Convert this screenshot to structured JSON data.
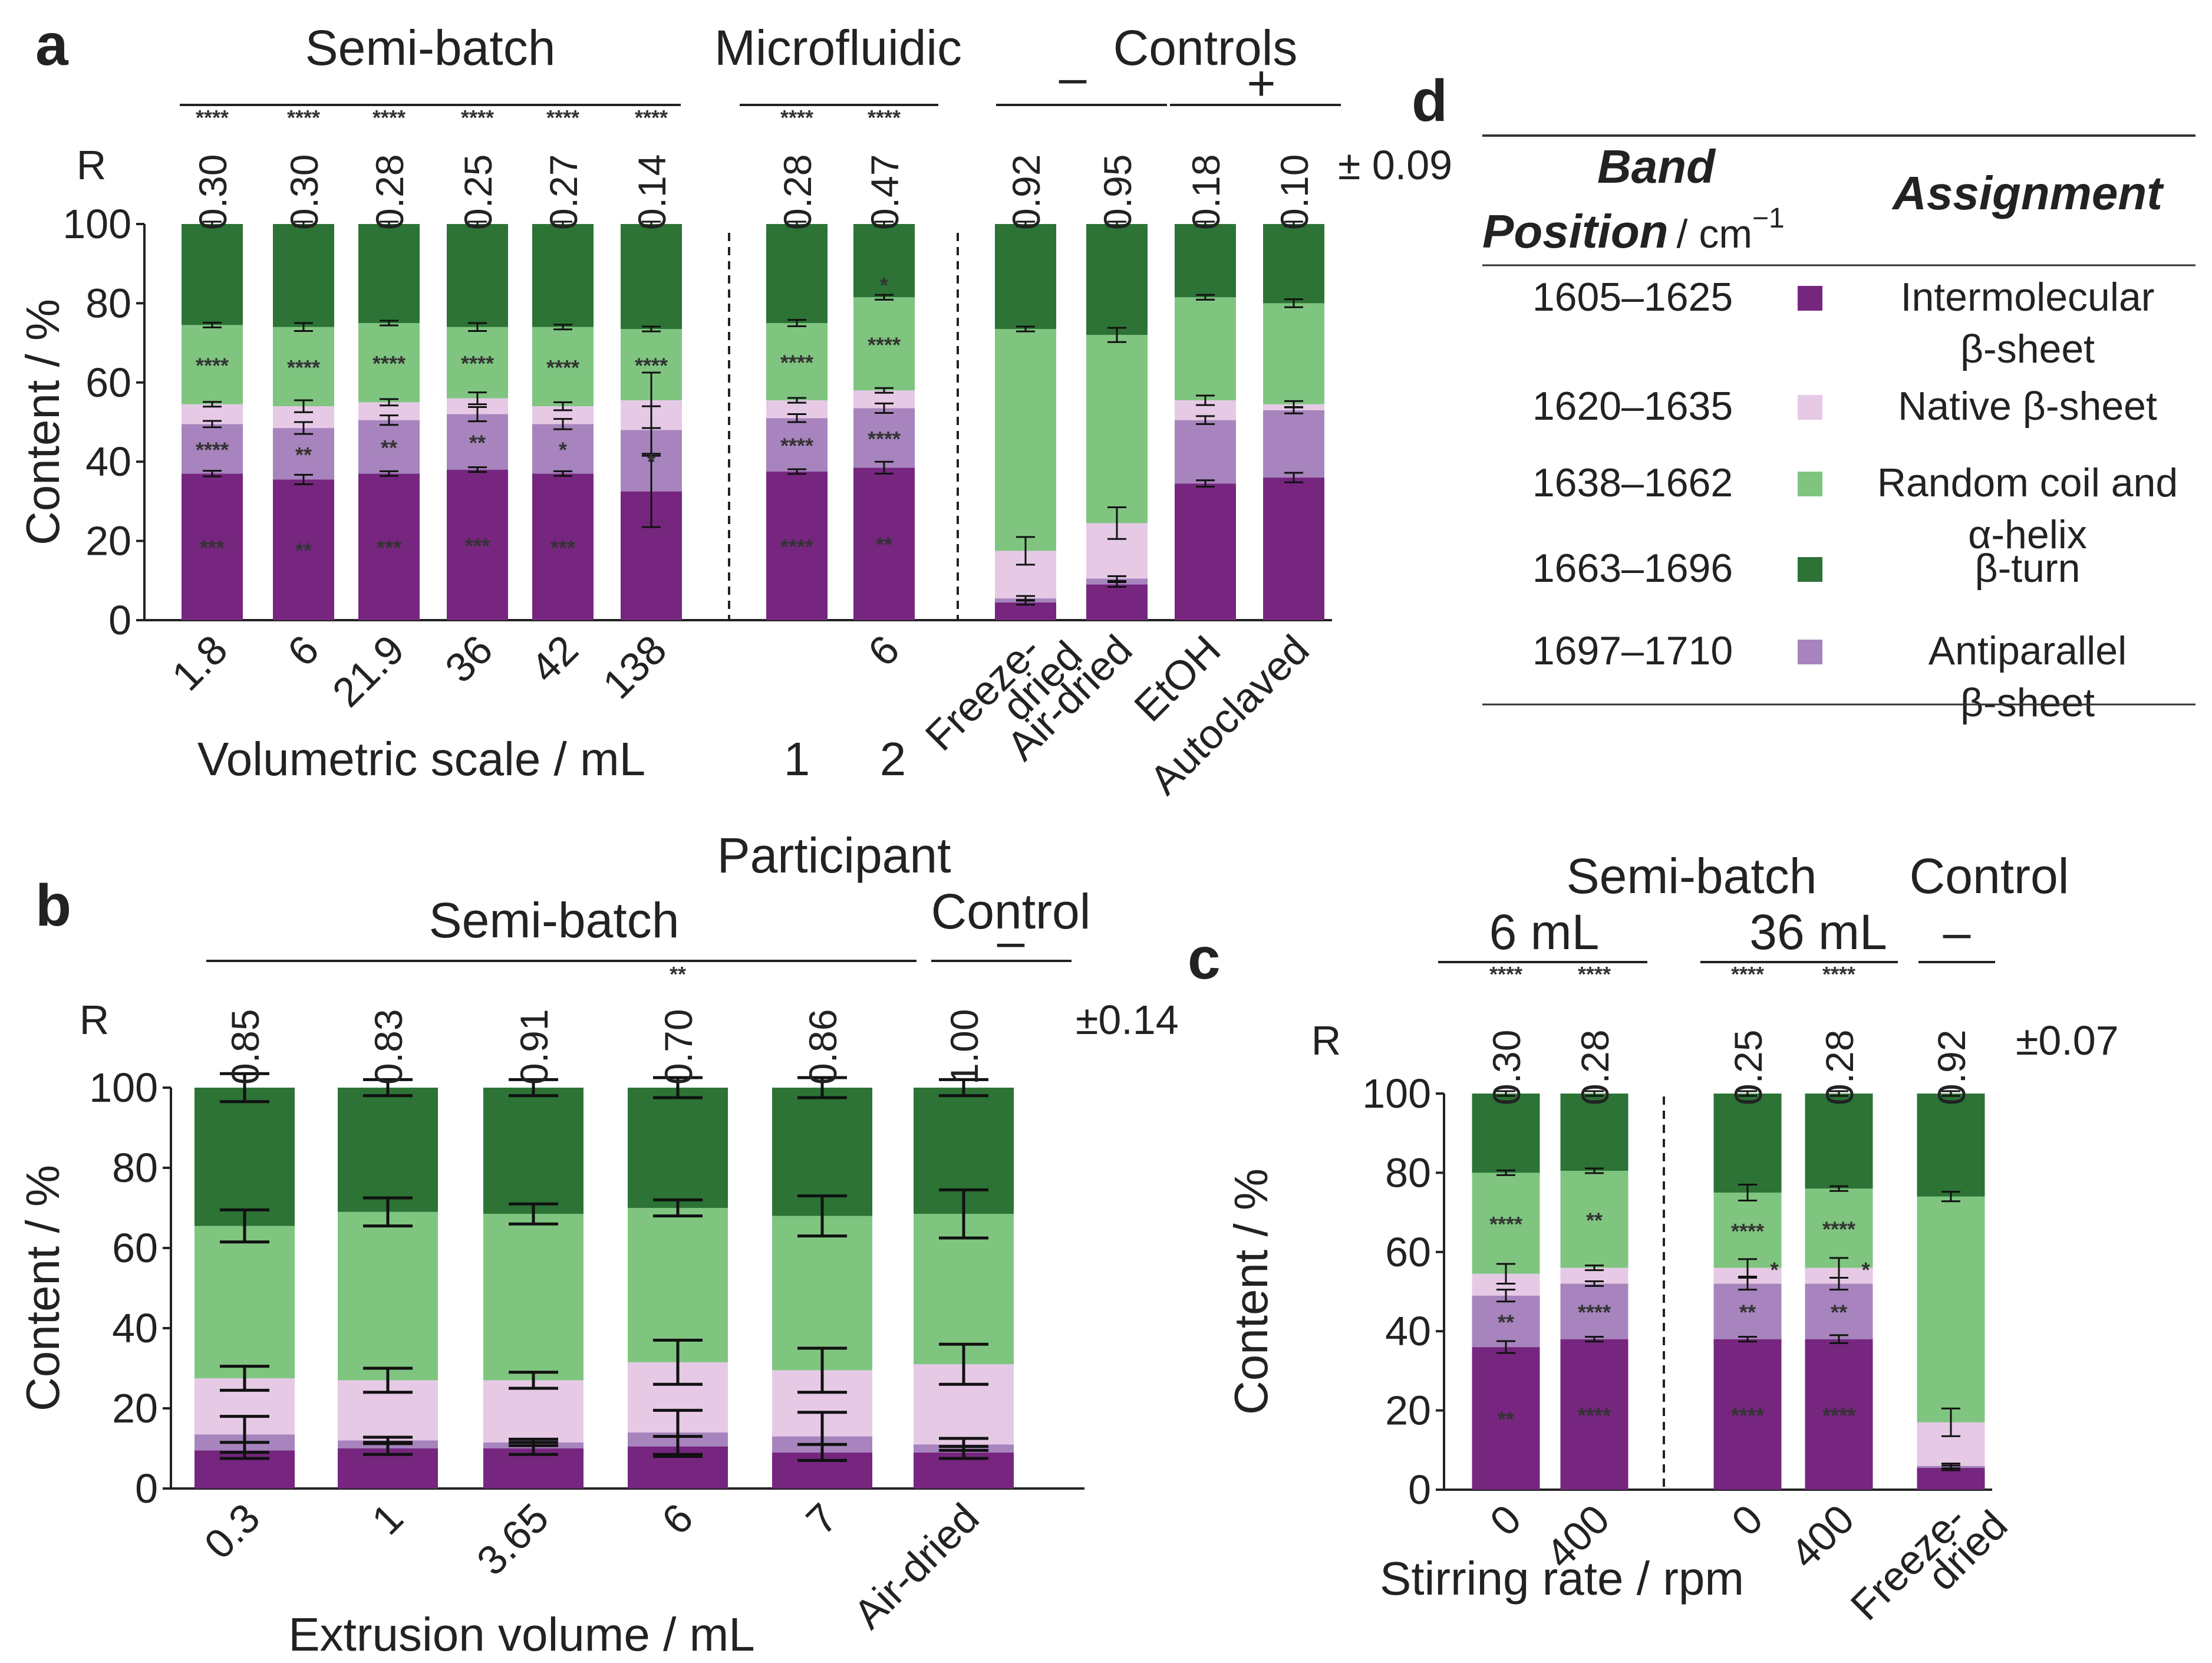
{
  "colors": {
    "inter": "#76267f",
    "anti": "#a784bd",
    "native": "#e6c9e5",
    "random": "#7fc580",
    "turn": "#2c7335"
  },
  "chart_data": [
    {
      "panel": "a",
      "type": "stacked-bar",
      "ylabel": "Content / %",
      "xlabel": "Volumetric scale / mL",
      "ylim": [
        0,
        100
      ],
      "yticks": [
        "0",
        "20",
        "40",
        "60",
        "80",
        "100"
      ],
      "r_label": "R",
      "r_error": "± 0.09",
      "groups": [
        {
          "label": "Semi-batch",
          "bars": [
            0,
            1,
            2,
            3,
            4,
            5
          ]
        },
        {
          "label": "Microfluidic",
          "bars": [
            6,
            7
          ]
        },
        {
          "label": "Controls",
          "sublabels": [
            "–",
            "+"
          ],
          "bars": [
            8,
            9,
            10,
            11
          ]
        }
      ],
      "extra_labels": [
        "1",
        "2"
      ],
      "series_order": [
        "inter",
        "anti",
        "native",
        "random",
        "turn"
      ],
      "bars": [
        {
          "x": "1.8",
          "R": "0.30",
          "r_sig": "****",
          "values": {
            "inter": 37,
            "anti": 12.5,
            "native": 5,
            "random": 20,
            "turn": 25.5
          },
          "stars": [
            "***",
            "****",
            "",
            "****",
            ""
          ]
        },
        {
          "x": "6",
          "R": "0.30",
          "r_sig": "****",
          "values": {
            "inter": 35.5,
            "anti": 13,
            "native": 5.5,
            "random": 20,
            "turn": 26
          },
          "stars": [
            "**",
            "**",
            "",
            "****",
            ""
          ]
        },
        {
          "x": "21.9",
          "R": "0.28",
          "r_sig": "****",
          "values": {
            "inter": 37,
            "anti": 13.5,
            "native": 4.5,
            "random": 20,
            "turn": 25
          },
          "stars": [
            "***",
            "**",
            "",
            "****",
            ""
          ]
        },
        {
          "x": "36",
          "R": "0.25",
          "r_sig": "****",
          "values": {
            "inter": 38,
            "anti": 14,
            "native": 4,
            "random": 18,
            "turn": 26
          },
          "stars": [
            "***",
            "**",
            "",
            "****",
            ""
          ]
        },
        {
          "x": "42",
          "R": "0.27",
          "r_sig": "****",
          "values": {
            "inter": 37,
            "anti": 12.5,
            "native": 4.5,
            "random": 20,
            "turn": 26
          },
          "stars": [
            "***",
            "*",
            "",
            "****",
            ""
          ]
        },
        {
          "x": "138",
          "R": "0.14",
          "r_sig": "****",
          "values": {
            "inter": 32.5,
            "anti": 15.5,
            "native": 7.5,
            "random": 18,
            "turn": 26.5
          },
          "stars": [
            "",
            "*",
            "",
            "****",
            ""
          ]
        },
        {
          "x": "",
          "R": "0.28",
          "r_sig": "****",
          "values": {
            "inter": 37.5,
            "anti": 13.5,
            "native": 4.5,
            "random": 19.5,
            "turn": 25
          },
          "stars": [
            "****",
            "****",
            "",
            "****",
            ""
          ]
        },
        {
          "x": "6",
          "R": "0.47",
          "r_sig": "****",
          "values": {
            "inter": 38.5,
            "anti": 15,
            "native": 4.5,
            "random": 23.5,
            "turn": 18.5
          },
          "stars": [
            "**",
            "****",
            "",
            "****",
            "*"
          ]
        },
        {
          "x": "Freeze-\ndried",
          "R": "0.92",
          "r_sig": "",
          "values": {
            "inter": 4.5,
            "anti": 1,
            "native": 12,
            "random": 56,
            "turn": 26.5
          },
          "stars": [
            "",
            "",
            "",
            "",
            ""
          ]
        },
        {
          "x": "Air-dried",
          "R": "0.95",
          "r_sig": "",
          "values": {
            "inter": 9,
            "anti": 1.5,
            "native": 14,
            "random": 47.5,
            "turn": 28
          },
          "stars": [
            "",
            "",
            "",
            "",
            ""
          ]
        },
        {
          "x": "EtOH",
          "R": "0.18",
          "r_sig": "",
          "values": {
            "inter": 34.5,
            "anti": 16,
            "native": 5,
            "random": 26,
            "turn": 18.5
          },
          "stars": [
            "",
            "",
            "",
            "",
            ""
          ]
        },
        {
          "x": "Autoclaved",
          "R": "0.10",
          "r_sig": "",
          "values": {
            "inter": 36,
            "anti": 17,
            "native": 1.5,
            "random": 25.5,
            "turn": 20
          },
          "stars": [
            "",
            "",
            "",
            "",
            ""
          ]
        }
      ]
    },
    {
      "panel": "b",
      "type": "stacked-bar",
      "ylabel": "Content / %",
      "xlabel": "Extrusion volume / mL",
      "ylim": [
        0,
        100
      ],
      "yticks": [
        "0",
        "20",
        "40",
        "60",
        "80",
        "100"
      ],
      "r_label": "R",
      "r_error": "±0.14",
      "top_label": "Participant",
      "groups": [
        {
          "label": "Semi-batch",
          "bars": [
            0,
            1,
            2,
            3,
            4
          ]
        },
        {
          "label": "Control",
          "sublabels": [
            "–"
          ],
          "bars": [
            5
          ]
        }
      ],
      "series_order": [
        "inter",
        "anti",
        "native",
        "random",
        "turn"
      ],
      "bars": [
        {
          "x": "0.3",
          "R": "0.85",
          "r_sig": "",
          "values": {
            "inter": 9.5,
            "anti": 4,
            "native": 14,
            "random": 38,
            "turn": 34.5
          }
        },
        {
          "x": "1",
          "R": "0.83",
          "r_sig": "",
          "values": {
            "inter": 10,
            "anti": 2,
            "native": 15,
            "random": 42,
            "turn": 31
          }
        },
        {
          "x": "3.65",
          "R": "0.91",
          "r_sig": "",
          "values": {
            "inter": 10,
            "anti": 1.5,
            "native": 15.5,
            "random": 41.5,
            "turn": 31.5
          }
        },
        {
          "x": "6",
          "R": "0.70",
          "r_sig": "**",
          "values": {
            "inter": 10.5,
            "anti": 3.5,
            "native": 17.5,
            "random": 38.5,
            "turn": 30
          }
        },
        {
          "x": "7",
          "R": "0.86",
          "r_sig": "",
          "values": {
            "inter": 9,
            "anti": 4,
            "native": 16.5,
            "random": 38.5,
            "turn": 32
          }
        },
        {
          "x": "Air-dried",
          "R": "1.00",
          "r_sig": "",
          "values": {
            "inter": 9,
            "anti": 2,
            "native": 20,
            "random": 37.5,
            "turn": 31.5
          }
        }
      ]
    },
    {
      "panel": "c",
      "type": "stacked-bar",
      "ylabel": "Content / %",
      "xlabel": "Stirring rate / rpm",
      "ylim": [
        0,
        100
      ],
      "yticks": [
        "0",
        "20",
        "40",
        "60",
        "80",
        "100"
      ],
      "r_label": "R",
      "r_error": "±0.07",
      "groups": [
        {
          "label": "Semi-batch",
          "bars": [
            0,
            1,
            2,
            3
          ]
        },
        {
          "label": "6 mL",
          "bars": [
            0,
            1
          ]
        },
        {
          "label": "36 mL",
          "bars": [
            2,
            3
          ]
        },
        {
          "label": "Control",
          "sublabels": [
            "–"
          ],
          "bars": [
            4
          ]
        }
      ],
      "series_order": [
        "inter",
        "anti",
        "native",
        "random",
        "turn"
      ],
      "bars": [
        {
          "x": "0",
          "R": "0.30",
          "r_sig": "****",
          "values": {
            "inter": 36,
            "anti": 13,
            "native": 5.5,
            "random": 25.5,
            "turn": 20
          },
          "stars": [
            "**",
            "**",
            "",
            "****",
            ""
          ]
        },
        {
          "x": "400",
          "R": "0.28",
          "r_sig": "****",
          "values": {
            "inter": 38,
            "anti": 14,
            "native": 4,
            "random": 24.5,
            "turn": 19.5
          },
          "stars": [
            "****",
            "****",
            "",
            "**",
            ""
          ]
        },
        {
          "x": "0",
          "R": "0.25",
          "r_sig": "****",
          "values": {
            "inter": 38,
            "anti": 14,
            "native": 4,
            "random": 19,
            "turn": 25
          },
          "stars": [
            "****",
            "**",
            "*",
            "****",
            ""
          ]
        },
        {
          "x": "400",
          "R": "0.28",
          "r_sig": "****",
          "values": {
            "inter": 38,
            "anti": 14,
            "native": 4,
            "random": 20,
            "turn": 24
          },
          "stars": [
            "****",
            "**",
            "*",
            "****",
            ""
          ]
        },
        {
          "x": "Freeze-\ndried",
          "R": "0.92",
          "r_sig": "",
          "values": {
            "inter": 5.5,
            "anti": 0.5,
            "native": 11,
            "random": 57,
            "turn": 26
          },
          "stars": [
            "",
            "",
            "",
            "",
            ""
          ]
        }
      ]
    }
  ],
  "legend": {
    "header_band": "Band",
    "header_position": "Position",
    "header_unit": "/ cm",
    "header_sup": "−1",
    "header_assignment": "Assignment",
    "rows": [
      {
        "range": "1605–1625",
        "color": "inter",
        "line1": "Intermolecular",
        "line2": "β-sheet"
      },
      {
        "range": "1620–1635",
        "color": "native",
        "line1": "Native β-sheet",
        "line2": ""
      },
      {
        "range": "1638–1662",
        "color": "random",
        "line1": "Random coil and",
        "line2": "α-helix"
      },
      {
        "range": "1663–1696",
        "color": "turn",
        "line1": "β-turn",
        "line2": ""
      },
      {
        "range": "1697–1710",
        "color": "anti",
        "line1": "Antiparallel",
        "line2": "β-sheet"
      }
    ]
  },
  "panel_labels": [
    "a",
    "b",
    "c",
    "d"
  ]
}
